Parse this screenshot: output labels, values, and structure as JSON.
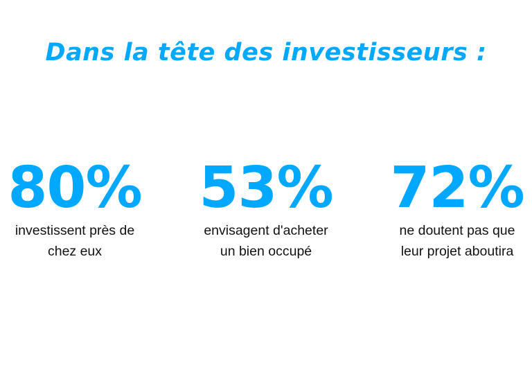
{
  "title": "Dans la tête des investisseurs :",
  "accent_color": "#00A8FF",
  "stats": [
    {
      "value": "80%",
      "caption": "investissent près de\nchez eux"
    },
    {
      "value": "53%",
      "caption": "envisagent d'acheter\nun bien occupé"
    },
    {
      "value": "72%",
      "caption": "ne doutent pas que\nleur projet aboutira"
    }
  ]
}
